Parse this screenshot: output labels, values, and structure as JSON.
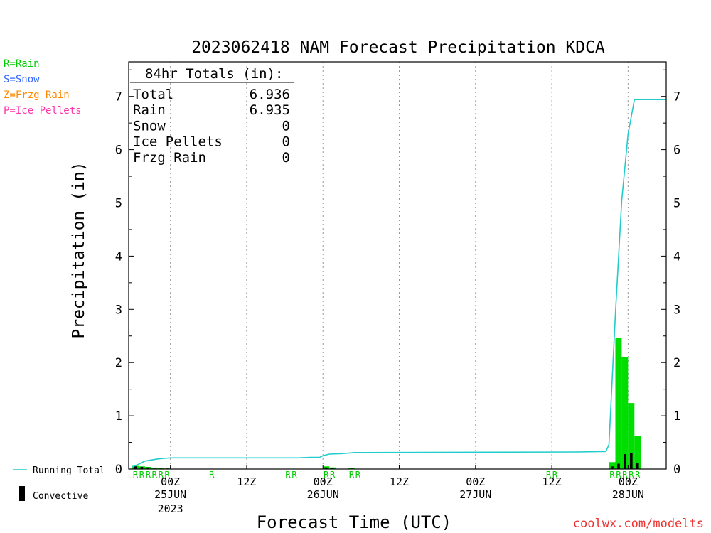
{
  "chart_data": {
    "type": "bar",
    "title": "2023062418 NAM Forecast Precipitation KDCA",
    "xlabel": "Forecast Time (UTC)",
    "ylabel": "Precipitation (in)",
    "ylim": [
      0,
      7.6
    ],
    "xlim_hours": [
      0,
      84
    ],
    "y_ticks": [
      "0",
      "1",
      "2",
      "3",
      "4",
      "5",
      "6",
      "7"
    ],
    "x_ticks": [
      {
        "hour": 6,
        "label": "00Z",
        "date": "25JUN",
        "year": "2023"
      },
      {
        "hour": 18,
        "label": "12Z",
        "date": "",
        "year": ""
      },
      {
        "hour": 30,
        "label": "00Z",
        "date": "26JUN",
        "year": ""
      },
      {
        "hour": 42,
        "label": "12Z",
        "date": "",
        "year": ""
      },
      {
        "hour": 54,
        "label": "00Z",
        "date": "27JUN",
        "year": ""
      },
      {
        "hour": 66,
        "label": "12Z",
        "date": "",
        "year": ""
      },
      {
        "hour": 78,
        "label": "00Z",
        "date": "28JUN",
        "year": ""
      }
    ],
    "type_legend": [
      {
        "text": "R=Rain",
        "color": "#00cc00"
      },
      {
        "text": "S=Snow",
        "color": "#3366ff"
      },
      {
        "text": "Z=Frzg Rain",
        "color": "#ff8800"
      },
      {
        "text": "P=Ice Pellets",
        "color": "#ff33aa"
      }
    ],
    "series_legend": {
      "running_total": "Running Total",
      "convective": "Convective"
    },
    "totals_box": {
      "header": "84hr Totals (in):",
      "rows": [
        {
          "label": "Total",
          "value": "6.936"
        },
        {
          "label": "Rain",
          "value": "6.935"
        },
        {
          "label": "Snow",
          "value": "0"
        },
        {
          "label": "Ice Pellets",
          "value": "0"
        },
        {
          "label": "Frzg Rain",
          "value": "0"
        }
      ]
    },
    "bar_width_hours": 1,
    "precip_bars": [
      {
        "hour": 0,
        "value": 0.06,
        "convective": 0.05
      },
      {
        "hour": 1,
        "value": 0.05,
        "convective": 0.04
      },
      {
        "hour": 2,
        "value": 0.04,
        "convective": 0.03
      },
      {
        "hour": 3,
        "value": 0.02,
        "convective": 0.01
      },
      {
        "hour": 4,
        "value": 0.02,
        "convective": 0.01
      },
      {
        "hour": 5,
        "value": 0.01,
        "convective": 0.01
      },
      {
        "hour": 30,
        "value": 0.05,
        "convective": 0.03
      },
      {
        "hour": 31,
        "value": 0.03,
        "convective": 0.02
      },
      {
        "hour": 34,
        "value": 0.02,
        "convective": 0.01
      },
      {
        "hour": 75,
        "value": 0.13,
        "convective": 0.05
      },
      {
        "hour": 76,
        "value": 2.47,
        "convective": 0.1
      },
      {
        "hour": 77,
        "value": 2.1,
        "convective": 0.28
      },
      {
        "hour": 78,
        "value": 1.24,
        "convective": 0.3
      },
      {
        "hour": 79,
        "value": 0.62,
        "convective": 0.12
      }
    ],
    "running_total": [
      {
        "hour": 0,
        "value": 0.04
      },
      {
        "hour": 1,
        "value": 0.09
      },
      {
        "hour": 2,
        "value": 0.15
      },
      {
        "hour": 3,
        "value": 0.17
      },
      {
        "hour": 4,
        "value": 0.19
      },
      {
        "hour": 5,
        "value": 0.2
      },
      {
        "hour": 6,
        "value": 0.21
      },
      {
        "hour": 26,
        "value": 0.21
      },
      {
        "hour": 28,
        "value": 0.22
      },
      {
        "hour": 29.5,
        "value": 0.22
      },
      {
        "hour": 30,
        "value": 0.25
      },
      {
        "hour": 31,
        "value": 0.28
      },
      {
        "hour": 33,
        "value": 0.29
      },
      {
        "hour": 35,
        "value": 0.31
      },
      {
        "hour": 70,
        "value": 0.32
      },
      {
        "hour": 74.5,
        "value": 0.33
      },
      {
        "hour": 75,
        "value": 0.46
      },
      {
        "hour": 76,
        "value": 2.9
      },
      {
        "hour": 77,
        "value": 5.04
      },
      {
        "hour": 78,
        "value": 6.3
      },
      {
        "hour": 79,
        "value": 6.94
      },
      {
        "hour": 84,
        "value": 6.94
      }
    ],
    "type_markers": [
      {
        "hour": 0,
        "text": "R"
      },
      {
        "hour": 1,
        "text": "R"
      },
      {
        "hour": 2,
        "text": "R"
      },
      {
        "hour": 3,
        "text": "R"
      },
      {
        "hour": 4,
        "text": "R"
      },
      {
        "hour": 5,
        "text": "R"
      },
      {
        "hour": 12,
        "text": "R"
      },
      {
        "hour": 24,
        "text": "R"
      },
      {
        "hour": 25,
        "text": "R"
      },
      {
        "hour": 30,
        "text": "R"
      },
      {
        "hour": 31,
        "text": "R"
      },
      {
        "hour": 34,
        "text": "R"
      },
      {
        "hour": 35,
        "text": "R"
      },
      {
        "hour": 65,
        "text": "R"
      },
      {
        "hour": 66,
        "text": "R"
      },
      {
        "hour": 75,
        "text": "R"
      },
      {
        "hour": 76,
        "text": "R"
      },
      {
        "hour": 77,
        "text": "R"
      },
      {
        "hour": 78,
        "text": "R"
      },
      {
        "hour": 79,
        "text": "R"
      }
    ],
    "colors": {
      "rain_bar": "#00dd00",
      "convective_bar": "#000000",
      "running_total_line": "#22cccc",
      "marker_text": "#00cc00",
      "credit": "#ee3333"
    },
    "credit": "coolwx.com/modelts"
  }
}
